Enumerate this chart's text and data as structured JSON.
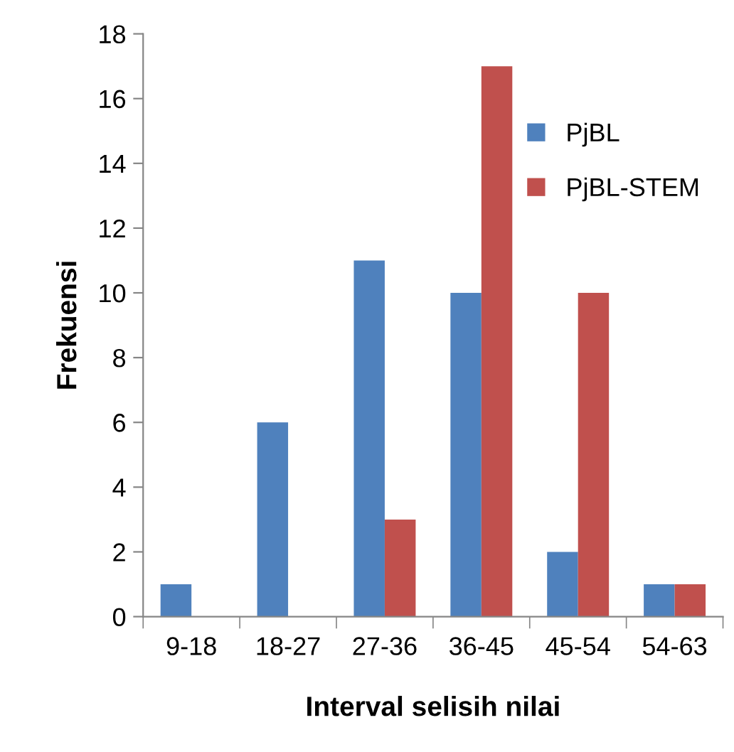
{
  "chart_data": {
    "type": "bar",
    "xlabel": "Interval selisih nilai",
    "ylabel": "Frekuensi",
    "categories": [
      "9-18",
      "18-27",
      "27-36",
      "36-45",
      "45-54",
      "54-63"
    ],
    "series": [
      {
        "name": "PjBL",
        "color": "#4f81bd",
        "values": [
          1,
          6,
          11,
          10,
          2,
          1
        ]
      },
      {
        "name": "PjBL-STEM",
        "color": "#c0504d",
        "values": [
          0,
          0,
          3,
          17,
          10,
          1
        ]
      }
    ],
    "ylim": [
      0,
      18
    ],
    "yticks": [
      0,
      2,
      4,
      6,
      8,
      10,
      12,
      14,
      16,
      18
    ],
    "grid": false,
    "legend": "right"
  }
}
